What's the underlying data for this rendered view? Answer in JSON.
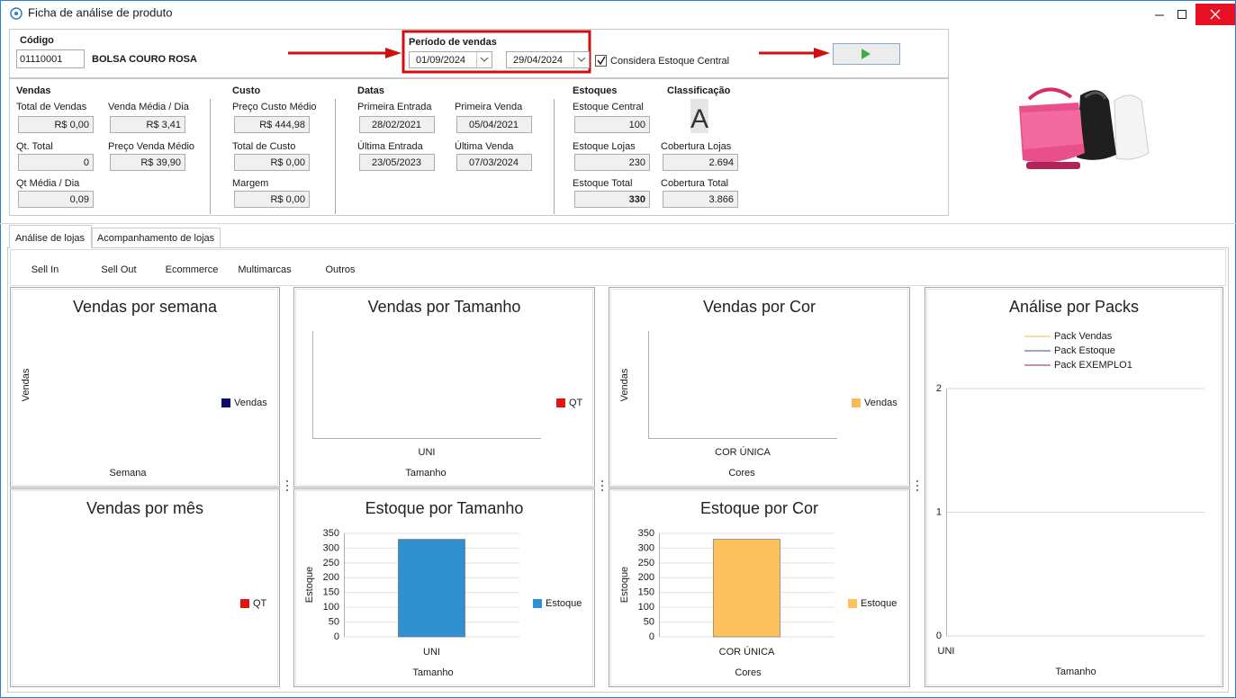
{
  "window": {
    "title": "Ficha de análise de produto"
  },
  "header": {
    "codigo_label": "Código",
    "codigo": "01110001",
    "produto": "BOLSA COURO ROSA",
    "periodo_label": "Período de vendas",
    "data_inicio": "01/09/2024",
    "data_fim": "29/04/2024",
    "considera_estoque_central": {
      "label": "Considera Estoque Central",
      "checked": true
    }
  },
  "sections": [
    {
      "title": "Vendas",
      "fields": [
        {
          "label": "Total de Vendas",
          "value": "R$ 0,00"
        },
        {
          "label": "Venda Média / Dia",
          "value": "R$ 3,41"
        },
        {
          "label": "Qt. Total",
          "value": "0"
        },
        {
          "label": "Preço Venda Médio",
          "value": "R$ 39,90"
        },
        {
          "label": "Qt Média / Dia",
          "value": "0,09"
        }
      ]
    },
    {
      "title": "Custo",
      "fields": [
        {
          "label": "Preço Custo Médio",
          "value": "R$ 444,98"
        },
        {
          "label": "Total de Custo",
          "value": "R$ 0,00"
        },
        {
          "label": "Margem",
          "value": "R$ 0,00"
        }
      ]
    },
    {
      "title": "Datas",
      "fields": [
        {
          "label": "Primeira Entrada",
          "value": "28/02/2021"
        },
        {
          "label": "Primeira Venda",
          "value": "05/04/2021"
        },
        {
          "label": "Última Entrada",
          "value": "23/05/2023"
        },
        {
          "label": "Última Venda",
          "value": "07/03/2024"
        }
      ]
    },
    {
      "title": "Estoques",
      "fields": [
        {
          "label": "Estoque Central",
          "value": "100"
        },
        {
          "label": "Estoque Lojas",
          "value": "230"
        },
        {
          "label": "Estoque Total",
          "value": "330",
          "bold": true
        }
      ]
    },
    {
      "title": "Classificação",
      "grade": "A",
      "fields": [
        {
          "label": "Cobertura Lojas",
          "value": "2.694"
        },
        {
          "label": "Cobertura Total",
          "value": "3.866"
        }
      ]
    }
  ],
  "tabs": [
    "Análise de lojas",
    "Acompanhamento de lojas"
  ],
  "active_tab": 0,
  "subtabs": [
    "Sell In",
    "Sell Out",
    "Ecommerce",
    "Multimarcas",
    "Outros"
  ],
  "charts": [
    {
      "type": "bar",
      "title": "Vendas por semana",
      "y_label": "Vendas",
      "x_label": "Semana",
      "series": [
        {
          "name": "Vendas",
          "color": "#0b0b6b"
        }
      ]
    },
    {
      "type": "bar",
      "title": "Vendas por Tamanho",
      "x_label": "Tamanho",
      "categories": [
        "UNI"
      ],
      "series": [
        {
          "name": "QT",
          "color": "#e31414"
        }
      ]
    },
    {
      "type": "bar",
      "title": "Vendas por Cor",
      "y_label": "Vendas",
      "x_label": "Cores",
      "categories": [
        "COR ÚNICA"
      ],
      "series": [
        {
          "name": "Vendas",
          "color": "#fcb95a"
        }
      ]
    },
    {
      "type": "line",
      "title": "Análise por Packs",
      "x_label": "Tamanho",
      "categories": [
        "UNI"
      ],
      "ylim": [
        0,
        2
      ],
      "yticks": [
        0,
        1,
        2
      ],
      "series": [
        {
          "name": "Pack Vendas",
          "color": "#f5b35a"
        },
        {
          "name": "Pack Estoque",
          "color": "#34508c"
        },
        {
          "name": "Pack EXEMPLO1",
          "color": "#8c2450"
        }
      ]
    },
    {
      "type": "bar",
      "title": "Vendas por mês",
      "series": [
        {
          "name": "QT",
          "color": "#e31414"
        }
      ]
    },
    {
      "type": "bar",
      "title": "Estoque por Tamanho",
      "y_label": "Estoque",
      "x_label": "Tamanho",
      "categories": [
        "UNI"
      ],
      "ylim": [
        0,
        350
      ],
      "yticks": [
        0,
        50,
        100,
        150,
        200,
        250,
        300,
        350
      ],
      "series": [
        {
          "name": "Estoque",
          "color": "#3191d0",
          "values": [
            330
          ]
        }
      ]
    },
    {
      "type": "bar",
      "title": "Estoque por Cor",
      "y_label": "Estoque",
      "x_label": "Cores",
      "categories": [
        "COR ÚNICA"
      ],
      "ylim": [
        0,
        350
      ],
      "yticks": [
        0,
        50,
        100,
        150,
        200,
        250,
        300,
        350
      ],
      "series": [
        {
          "name": "Estoque",
          "color": "#fdc15e",
          "values": [
            330
          ]
        }
      ]
    }
  ]
}
